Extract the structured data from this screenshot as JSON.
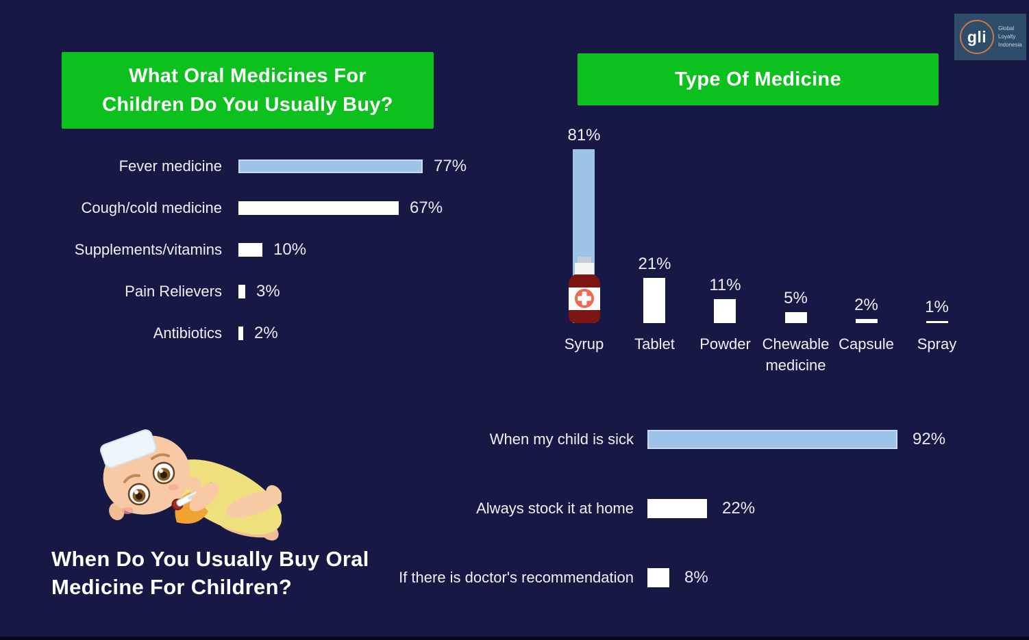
{
  "colors": {
    "background": "#171944",
    "header_green": "#0CC11E",
    "bar_highlight": "#9DC3E6",
    "bar_default": "#FFFFFF",
    "text": "#FFFFFF",
    "bottle_red": "#7D1513",
    "bottle_label_circle": "#EC6A50",
    "logo_bg": "#2E4D6B",
    "logo_ring_orange": "#D4763B"
  },
  "logo": {
    "text": "gli",
    "sub_lines": [
      "Global",
      "Loyalty",
      "Indonesia"
    ]
  },
  "chart_data": [
    {
      "type": "bar",
      "orientation": "horizontal",
      "title": "What Oral Medicines For Children Do You Usually Buy?",
      "categories": [
        "Fever medicine",
        "Cough/cold medicine",
        "Supplements/vitamins",
        "Pain Relievers",
        "Antibiotics"
      ],
      "values": [
        77,
        67,
        10,
        3,
        2
      ],
      "value_labels": [
        "77%",
        "67%",
        "10%",
        "3%",
        "2%"
      ],
      "xlim": [
        0,
        100
      ],
      "highlight_index": 0,
      "grid": false,
      "legend": false
    },
    {
      "type": "bar",
      "orientation": "vertical",
      "title": "Type Of Medicine",
      "categories": [
        "Syrup",
        "Tablet",
        "Powder",
        "Chewable medicine",
        "Capsule",
        "Spray"
      ],
      "values": [
        81,
        21,
        11,
        5,
        2,
        1
      ],
      "value_labels": [
        "81%",
        "21%",
        "11%",
        "5%",
        "2%",
        "1%"
      ],
      "ylim": [
        0,
        100
      ],
      "highlight_index": 0,
      "icon": "syrup-bottle-icon",
      "grid": false,
      "legend": false
    },
    {
      "type": "bar",
      "orientation": "horizontal",
      "title": "When Do You Usually Buy Oral Medicine For Children?",
      "categories": [
        "When my child is sick",
        "Always stock it at home",
        "If there is doctor's recommendation"
      ],
      "values": [
        92,
        22,
        8
      ],
      "value_labels": [
        "92%",
        "22%",
        "8%"
      ],
      "xlim": [
        0,
        100
      ],
      "highlight_index": 0,
      "grid": false,
      "legend": false
    }
  ]
}
